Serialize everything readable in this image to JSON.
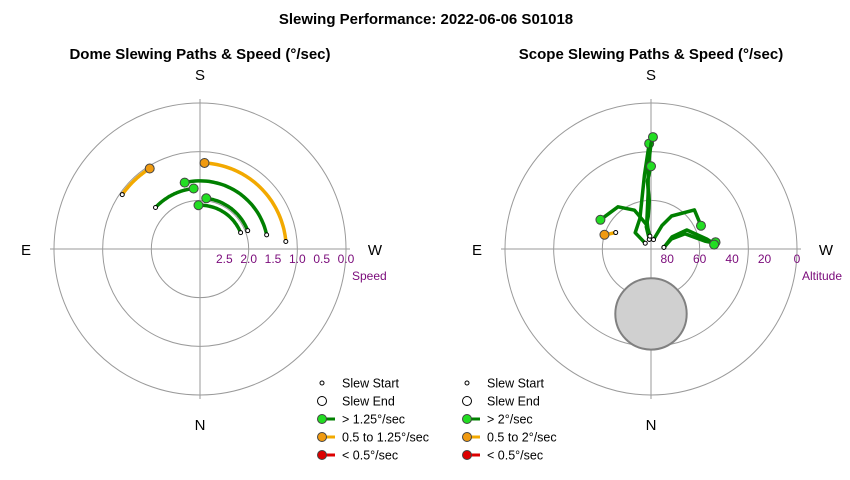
{
  "title": "Slewing Performance: 2022-06-06 S01018",
  "colors": {
    "grid": "#9a9a9a",
    "tick_label": "#7a0a7a",
    "fast": "#008000",
    "fast_marker": "#22dd22",
    "medium": "#f2a900",
    "medium_marker": "#f09a10",
    "slow": "#dd0000",
    "obstruction": "#d0d0d0"
  },
  "chart_data": [
    {
      "type": "polar",
      "title": "Dome Slewing Paths & Speed (°/sec)",
      "compass": {
        "top": "S",
        "bottom": "N",
        "left": "E",
        "right": "W"
      },
      "radial_axis": {
        "label": "Speed",
        "ticks": [
          "2.5",
          "2.0",
          "1.5",
          "1.0",
          "0.5",
          "0.0"
        ],
        "tick_values": [
          2.5,
          2.0,
          1.5,
          1.0,
          0.5,
          0.0
        ],
        "range": [
          0.0,
          3.0
        ],
        "inverted": true
      },
      "paths": [
        {
          "speed": "medium",
          "r": 1.23,
          "az_start": 265,
          "az_end": 183
        },
        {
          "speed": "fast",
          "r": 1.6,
          "az_start": 258,
          "az_end": 167
        },
        {
          "speed": "fast",
          "r": 1.95,
          "az_start": 249,
          "az_end": 187
        },
        {
          "speed": "fast",
          "r": 2.1,
          "az_start": 248,
          "az_end": 178
        },
        {
          "speed": "fast",
          "r": 1.75,
          "az_start": 133,
          "az_end": 174
        },
        {
          "speed": "medium",
          "r": 1.05,
          "az_start": 125,
          "az_end": 148
        }
      ],
      "legend": [
        {
          "marker": "start",
          "label": "Slew Start"
        },
        {
          "marker": "end",
          "label": "Slew End"
        },
        {
          "marker": "fast",
          "label": "> 1.25°/sec"
        },
        {
          "marker": "medium",
          "label": "0.5 to 1.25°/sec"
        },
        {
          "marker": "slow",
          "label": "< 0.5°/sec"
        }
      ]
    },
    {
      "type": "polar",
      "title": "Scope Slewing Paths & Speed (°/sec)",
      "compass": {
        "top": "S",
        "bottom": "N",
        "left": "E",
        "right": "W"
      },
      "radial_axis": {
        "label": "Altitude",
        "ticks": [
          "80",
          "60",
          "40",
          "20",
          "0"
        ],
        "tick_values": [
          80,
          60,
          40,
          20,
          0
        ],
        "range": [
          0,
          90
        ],
        "inverted": true
      },
      "obstruction": {
        "alt": 50,
        "az": 0,
        "radius_deg": 22
      },
      "paths": [
        {
          "speed": "fast",
          "points": [
            [
              82,
              263
            ],
            [
              75,
              240
            ],
            [
              65,
              242
            ],
            [
              55,
              260
            ],
            [
              52,
              264
            ],
            [
              50,
              264
            ]
          ]
        },
        {
          "speed": "fast",
          "points": [
            [
              82,
              263
            ],
            [
              76,
              244
            ],
            [
              67,
              246
            ],
            [
              56,
              262
            ],
            [
              52,
              264
            ],
            [
              51,
              266
            ]
          ]
        },
        {
          "speed": "fast",
          "points": [
            [
              85,
              135
            ],
            [
              76,
              136
            ],
            [
              70,
              160
            ],
            [
              44,
              175
            ],
            [
              25,
              179
            ]
          ]
        },
        {
          "speed": "fast",
          "points": [
            [
              84,
              170
            ],
            [
              72,
              172
            ],
            [
              56,
              177
            ],
            [
              40,
              178
            ],
            [
              25,
              180
            ],
            [
              21,
              181
            ]
          ]
        },
        {
          "speed": "fast",
          "points": [
            [
              84,
              170
            ],
            [
              76,
              168
            ],
            [
              70,
              175
            ],
            [
              60,
              178
            ],
            [
              48,
              177
            ],
            [
              39,
              180
            ]
          ]
        },
        {
          "speed": "fast",
          "points": [
            [
              82,
              175
            ],
            [
              75,
              170
            ],
            [
              64,
              157
            ],
            [
              57,
              142
            ],
            [
              54,
              120
            ]
          ]
        },
        {
          "speed": "fast",
          "points": [
            [
              84,
              195
            ],
            [
              74,
              205
            ],
            [
              66,
              212
            ],
            [
              54,
              228
            ],
            [
              56,
              245
            ]
          ]
        },
        {
          "speed": "medium",
          "points": [
            [
              66,
              115
            ],
            [
              62,
              109
            ],
            [
              60,
              107
            ]
          ]
        }
      ],
      "legend": [
        {
          "marker": "start",
          "label": "Slew Start"
        },
        {
          "marker": "end",
          "label": "Slew End"
        },
        {
          "marker": "fast",
          "label": "> 2°/sec"
        },
        {
          "marker": "medium",
          "label": "0.5 to 2°/sec"
        },
        {
          "marker": "slow",
          "label": "< 0.5°/sec"
        }
      ]
    }
  ]
}
